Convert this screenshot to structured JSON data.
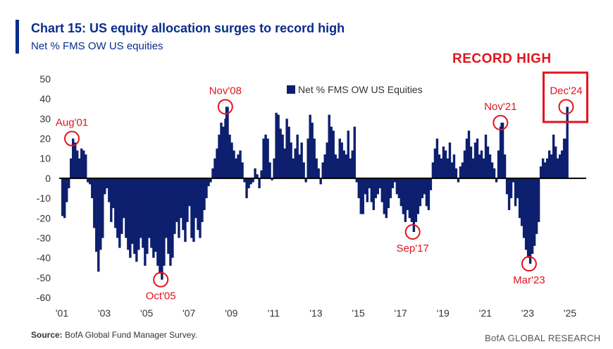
{
  "header": {
    "title": "Chart 15: US equity allocation surges to record high",
    "subtitle": "Net % FMS OW US equities",
    "callout": "RECORD HIGH"
  },
  "footer": {
    "source_label": "Source:",
    "source_text": " BofA Global Fund Manager Survey.",
    "brand": "BofA GLOBAL RESEARCH"
  },
  "colors": {
    "bar": "#0d1f6e",
    "accent": "#0a2d8c",
    "annotation": "#e0141e",
    "zero_line": "#000000"
  },
  "chart_data": {
    "type": "bar",
    "title": "Chart 15: US equity allocation surges to record high",
    "ylabel": "",
    "xlabel": "",
    "ylim": [
      -60,
      50
    ],
    "yticks": [
      50,
      40,
      30,
      20,
      10,
      0,
      -10,
      -20,
      -30,
      -40,
      -50,
      -60
    ],
    "xlim": [
      2001.0,
      2025.9
    ],
    "xticks": [
      {
        "label": "'01",
        "year": 2001
      },
      {
        "label": "'03",
        "year": 2003
      },
      {
        "label": "'05",
        "year": 2005
      },
      {
        "label": "'07",
        "year": 2007
      },
      {
        "label": "'09",
        "year": 2009
      },
      {
        "label": "'11",
        "year": 2011
      },
      {
        "label": "'13",
        "year": 2013
      },
      {
        "label": "'15",
        "year": 2015
      },
      {
        "label": "'17",
        "year": 2017
      },
      {
        "label": "'19",
        "year": 2019
      },
      {
        "label": "'21",
        "year": 2021
      },
      {
        "label": "'23",
        "year": 2023
      },
      {
        "label": "'25",
        "year": 2025
      }
    ],
    "legend": {
      "label": "Net % FMS OW US Equities",
      "position": "top-center"
    },
    "grid": false,
    "annotations": [
      {
        "label": "Aug'01",
        "x": 2001.6,
        "y": 20,
        "label_pos": "above"
      },
      {
        "label": "Oct'05",
        "x": 2005.8,
        "y": -51,
        "label_pos": "below"
      },
      {
        "label": "Nov'08",
        "x": 2008.85,
        "y": 36,
        "label_pos": "above"
      },
      {
        "label": "Sep'17",
        "x": 2017.7,
        "y": -27,
        "label_pos": "below"
      },
      {
        "label": "Nov'21",
        "x": 2021.85,
        "y": 28,
        "label_pos": "above"
      },
      {
        "label": "Mar'23",
        "x": 2023.2,
        "y": -43,
        "label_pos": "below"
      },
      {
        "label": "Dec'24",
        "x": 2024.95,
        "y": 36,
        "label_pos": "above"
      }
    ],
    "series": [
      {
        "name": "Net % FMS OW US Equities",
        "points": [
          [
            2001.1,
            -19
          ],
          [
            2001.2,
            -20
          ],
          [
            2001.3,
            -12
          ],
          [
            2001.4,
            -5
          ],
          [
            2001.5,
            10
          ],
          [
            2001.6,
            20
          ],
          [
            2001.7,
            18
          ],
          [
            2001.8,
            14
          ],
          [
            2001.9,
            10
          ],
          [
            2002.0,
            15
          ],
          [
            2002.1,
            14
          ],
          [
            2002.2,
            12
          ],
          [
            2002.3,
            -2
          ],
          [
            2002.4,
            -3
          ],
          [
            2002.5,
            -10
          ],
          [
            2002.6,
            -25
          ],
          [
            2002.7,
            -37
          ],
          [
            2002.8,
            -47
          ],
          [
            2002.9,
            -36
          ],
          [
            2003.0,
            -30
          ],
          [
            2003.1,
            -8
          ],
          [
            2003.2,
            -5
          ],
          [
            2003.3,
            -12
          ],
          [
            2003.4,
            -22
          ],
          [
            2003.5,
            -15
          ],
          [
            2003.6,
            -25
          ],
          [
            2003.7,
            -30
          ],
          [
            2003.8,
            -35
          ],
          [
            2003.9,
            -28
          ],
          [
            2004.0,
            -20
          ],
          [
            2004.1,
            -30
          ],
          [
            2004.2,
            -36
          ],
          [
            2004.3,
            -40
          ],
          [
            2004.4,
            -33
          ],
          [
            2004.5,
            -38
          ],
          [
            2004.6,
            -42
          ],
          [
            2004.7,
            -36
          ],
          [
            2004.8,
            -30
          ],
          [
            2004.9,
            -35
          ],
          [
            2005.0,
            -44
          ],
          [
            2005.1,
            -38
          ],
          [
            2005.2,
            -30
          ],
          [
            2005.3,
            -35
          ],
          [
            2005.4,
            -40
          ],
          [
            2005.5,
            -37
          ],
          [
            2005.6,
            -44
          ],
          [
            2005.7,
            -48
          ],
          [
            2005.8,
            -51
          ],
          [
            2005.9,
            -44
          ],
          [
            2006.0,
            -30
          ],
          [
            2006.1,
            -38
          ],
          [
            2006.2,
            -44
          ],
          [
            2006.3,
            -40
          ],
          [
            2006.4,
            -28
          ],
          [
            2006.5,
            -22
          ],
          [
            2006.6,
            -30
          ],
          [
            2006.7,
            -20
          ],
          [
            2006.8,
            -26
          ],
          [
            2006.9,
            -32
          ],
          [
            2007.0,
            -22
          ],
          [
            2007.1,
            -14
          ],
          [
            2007.2,
            -30
          ],
          [
            2007.3,
            -32
          ],
          [
            2007.4,
            -20
          ],
          [
            2007.5,
            -26
          ],
          [
            2007.6,
            -30
          ],
          [
            2007.7,
            -22
          ],
          [
            2007.8,
            -16
          ],
          [
            2007.9,
            -10
          ],
          [
            2008.0,
            -4
          ],
          [
            2008.1,
            -2
          ],
          [
            2008.2,
            5
          ],
          [
            2008.3,
            10
          ],
          [
            2008.4,
            15
          ],
          [
            2008.5,
            22
          ],
          [
            2008.6,
            28
          ],
          [
            2008.7,
            26
          ],
          [
            2008.8,
            30
          ],
          [
            2008.85,
            36
          ],
          [
            2009.0,
            22
          ],
          [
            2009.1,
            18
          ],
          [
            2009.2,
            14
          ],
          [
            2009.3,
            10
          ],
          [
            2009.4,
            12
          ],
          [
            2009.5,
            14
          ],
          [
            2009.6,
            8
          ],
          [
            2009.7,
            -2
          ],
          [
            2009.8,
            -10
          ],
          [
            2009.9,
            -5
          ],
          [
            2010.0,
            -3
          ],
          [
            2010.1,
            -2
          ],
          [
            2010.2,
            5
          ],
          [
            2010.3,
            2
          ],
          [
            2010.4,
            -5
          ],
          [
            2010.5,
            4
          ],
          [
            2010.6,
            20
          ],
          [
            2010.7,
            22
          ],
          [
            2010.8,
            20
          ],
          [
            2010.9,
            8
          ],
          [
            2011.0,
            -1
          ],
          [
            2011.1,
            10
          ],
          [
            2011.2,
            33
          ],
          [
            2011.3,
            32
          ],
          [
            2011.4,
            25
          ],
          [
            2011.5,
            22
          ],
          [
            2011.6,
            15
          ],
          [
            2011.7,
            30
          ],
          [
            2011.8,
            26
          ],
          [
            2011.9,
            18
          ],
          [
            2012.0,
            10
          ],
          [
            2012.1,
            15
          ],
          [
            2012.2,
            22
          ],
          [
            2012.3,
            12
          ],
          [
            2012.4,
            18
          ],
          [
            2012.5,
            8
          ],
          [
            2012.6,
            -2
          ],
          [
            2012.7,
            20
          ],
          [
            2012.8,
            32
          ],
          [
            2012.9,
            28
          ],
          [
            2013.0,
            20
          ],
          [
            2013.1,
            10
          ],
          [
            2013.2,
            5
          ],
          [
            2013.3,
            -3
          ],
          [
            2013.4,
            8
          ],
          [
            2013.5,
            12
          ],
          [
            2013.6,
            18
          ],
          [
            2013.7,
            32
          ],
          [
            2013.8,
            26
          ],
          [
            2013.9,
            24
          ],
          [
            2014.0,
            12
          ],
          [
            2014.1,
            10
          ],
          [
            2014.2,
            20
          ],
          [
            2014.3,
            18
          ],
          [
            2014.4,
            14
          ],
          [
            2014.5,
            12
          ],
          [
            2014.6,
            24
          ],
          [
            2014.7,
            10
          ],
          [
            2014.8,
            14
          ],
          [
            2014.9,
            26
          ],
          [
            2015.0,
            -2
          ],
          [
            2015.1,
            -10
          ],
          [
            2015.2,
            -18
          ],
          [
            2015.3,
            -18
          ],
          [
            2015.4,
            -8
          ],
          [
            2015.5,
            -12
          ],
          [
            2015.6,
            -5
          ],
          [
            2015.7,
            -12
          ],
          [
            2015.8,
            -16
          ],
          [
            2015.9,
            -10
          ],
          [
            2016.0,
            -8
          ],
          [
            2016.1,
            -5
          ],
          [
            2016.2,
            -12
          ],
          [
            2016.3,
            -18
          ],
          [
            2016.4,
            -20
          ],
          [
            2016.5,
            -15
          ],
          [
            2016.6,
            -10
          ],
          [
            2016.7,
            -5
          ],
          [
            2016.8,
            -2
          ],
          [
            2016.9,
            -8
          ],
          [
            2017.0,
            -10
          ],
          [
            2017.1,
            -14
          ],
          [
            2017.2,
            -18
          ],
          [
            2017.3,
            -22
          ],
          [
            2017.4,
            -16
          ],
          [
            2017.5,
            -20
          ],
          [
            2017.6,
            -22
          ],
          [
            2017.7,
            -27
          ],
          [
            2017.8,
            -22
          ],
          [
            2017.9,
            -18
          ],
          [
            2018.0,
            -14
          ],
          [
            2018.1,
            -10
          ],
          [
            2018.2,
            -8
          ],
          [
            2018.3,
            -14
          ],
          [
            2018.4,
            -16
          ],
          [
            2018.5,
            -6
          ],
          [
            2018.6,
            8
          ],
          [
            2018.7,
            15
          ],
          [
            2018.8,
            20
          ],
          [
            2018.9,
            12
          ],
          [
            2019.0,
            10
          ],
          [
            2019.1,
            16
          ],
          [
            2019.2,
            14
          ],
          [
            2019.3,
            10
          ],
          [
            2019.4,
            18
          ],
          [
            2019.5,
            8
          ],
          [
            2019.6,
            12
          ],
          [
            2019.7,
            5
          ],
          [
            2019.8,
            -2
          ],
          [
            2019.9,
            6
          ],
          [
            2020.0,
            8
          ],
          [
            2020.1,
            14
          ],
          [
            2020.2,
            20
          ],
          [
            2020.3,
            24
          ],
          [
            2020.4,
            16
          ],
          [
            2020.5,
            10
          ],
          [
            2020.6,
            18
          ],
          [
            2020.7,
            20
          ],
          [
            2020.8,
            12
          ],
          [
            2020.9,
            14
          ],
          [
            2021.0,
            10
          ],
          [
            2021.1,
            22
          ],
          [
            2021.2,
            16
          ],
          [
            2021.3,
            12
          ],
          [
            2021.4,
            8
          ],
          [
            2021.5,
            5
          ],
          [
            2021.6,
            -2
          ],
          [
            2021.7,
            14
          ],
          [
            2021.8,
            26
          ],
          [
            2021.85,
            28
          ],
          [
            2022.0,
            12
          ],
          [
            2022.1,
            -8
          ],
          [
            2022.2,
            -16
          ],
          [
            2022.3,
            -10
          ],
          [
            2022.4,
            -2
          ],
          [
            2022.5,
            -14
          ],
          [
            2022.6,
            -10
          ],
          [
            2022.7,
            -20
          ],
          [
            2022.8,
            -24
          ],
          [
            2022.9,
            -30
          ],
          [
            2023.0,
            -36
          ],
          [
            2023.1,
            -40
          ],
          [
            2023.2,
            -43
          ],
          [
            2023.3,
            -38
          ],
          [
            2023.4,
            -34
          ],
          [
            2023.5,
            -28
          ],
          [
            2023.6,
            -22
          ],
          [
            2023.7,
            6
          ],
          [
            2023.8,
            10
          ],
          [
            2023.9,
            8
          ],
          [
            2024.0,
            10
          ],
          [
            2024.1,
            14
          ],
          [
            2024.2,
            12
          ],
          [
            2024.3,
            22
          ],
          [
            2024.4,
            16
          ],
          [
            2024.5,
            10
          ],
          [
            2024.6,
            12
          ],
          [
            2024.7,
            14
          ],
          [
            2024.8,
            20
          ],
          [
            2024.95,
            36
          ]
        ]
      }
    ]
  }
}
